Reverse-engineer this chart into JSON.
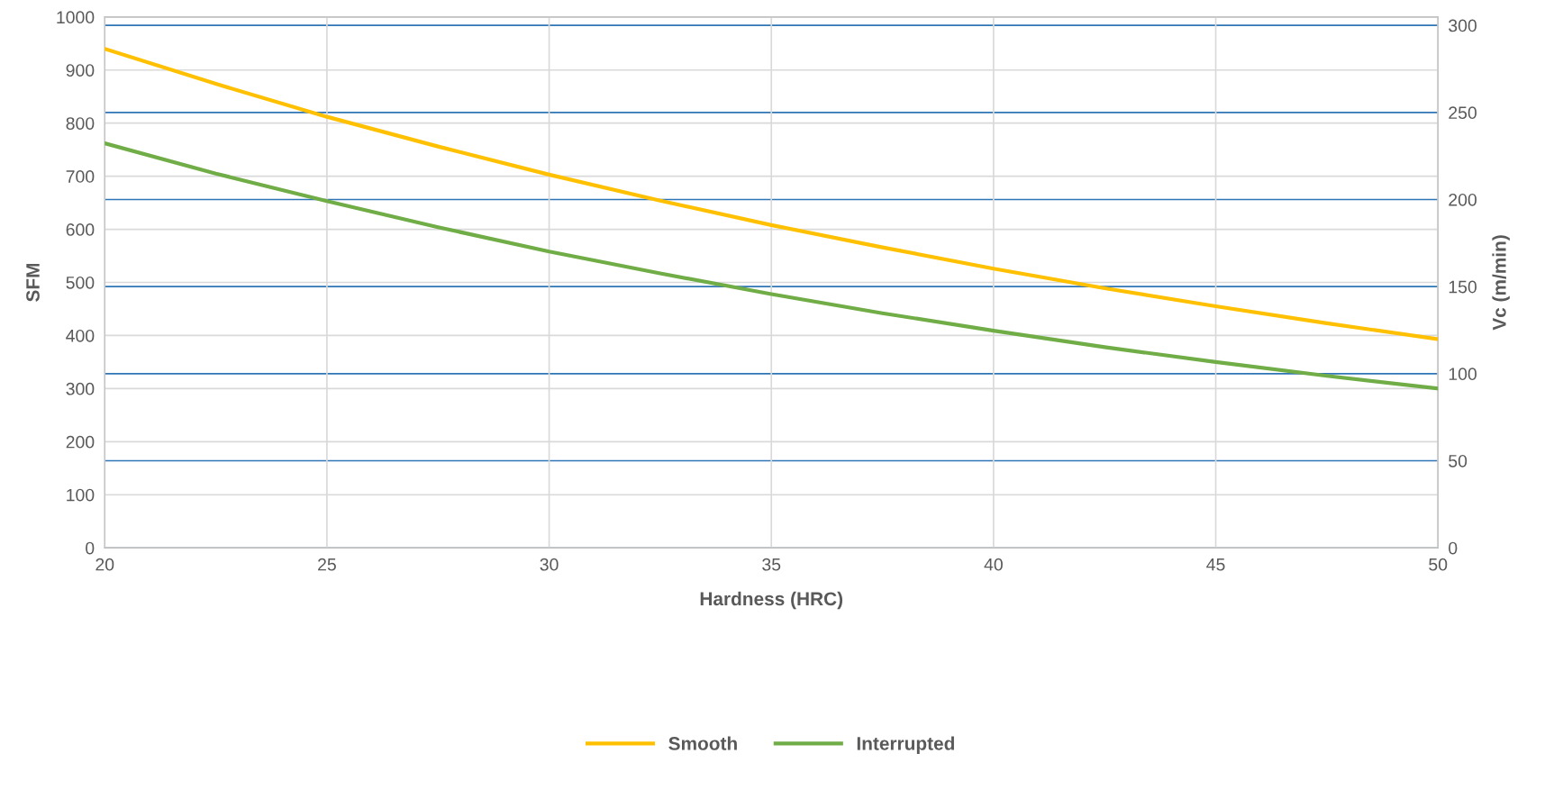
{
  "chart_data": {
    "type": "line",
    "xlabel": "Hardness (HRC)",
    "ylabel": "SFM",
    "y2label": "Vc (m/min)",
    "x": [
      20,
      22.5,
      25,
      27.5,
      30,
      32.5,
      35,
      37.5,
      40,
      42.5,
      45,
      47.5,
      50
    ],
    "series": [
      {
        "name": "Smooth",
        "color": "#ffc000",
        "values": [
          940,
          874,
          812,
          756,
          703,
          654,
          608,
          566,
          526,
          489,
          455,
          423,
          393
        ]
      },
      {
        "name": "Interrupted",
        "color": "#70ad47",
        "values": [
          762,
          705,
          653,
          604,
          558,
          517,
          478,
          442,
          409,
          378,
          350,
          324,
          300
        ]
      }
    ],
    "xlim": [
      20,
      50
    ],
    "xticks": [
      20,
      25,
      30,
      35,
      40,
      45,
      50
    ],
    "ylim": [
      0,
      1000
    ],
    "yticks": [
      0,
      100,
      200,
      300,
      400,
      500,
      600,
      700,
      800,
      900,
      1000
    ],
    "y2lim": [
      0,
      304.8
    ],
    "y2ticks": [
      0,
      50,
      100,
      150,
      200,
      250,
      300
    ],
    "grid": true,
    "legend": "bottom",
    "marker": "none",
    "line_style": "solid"
  }
}
